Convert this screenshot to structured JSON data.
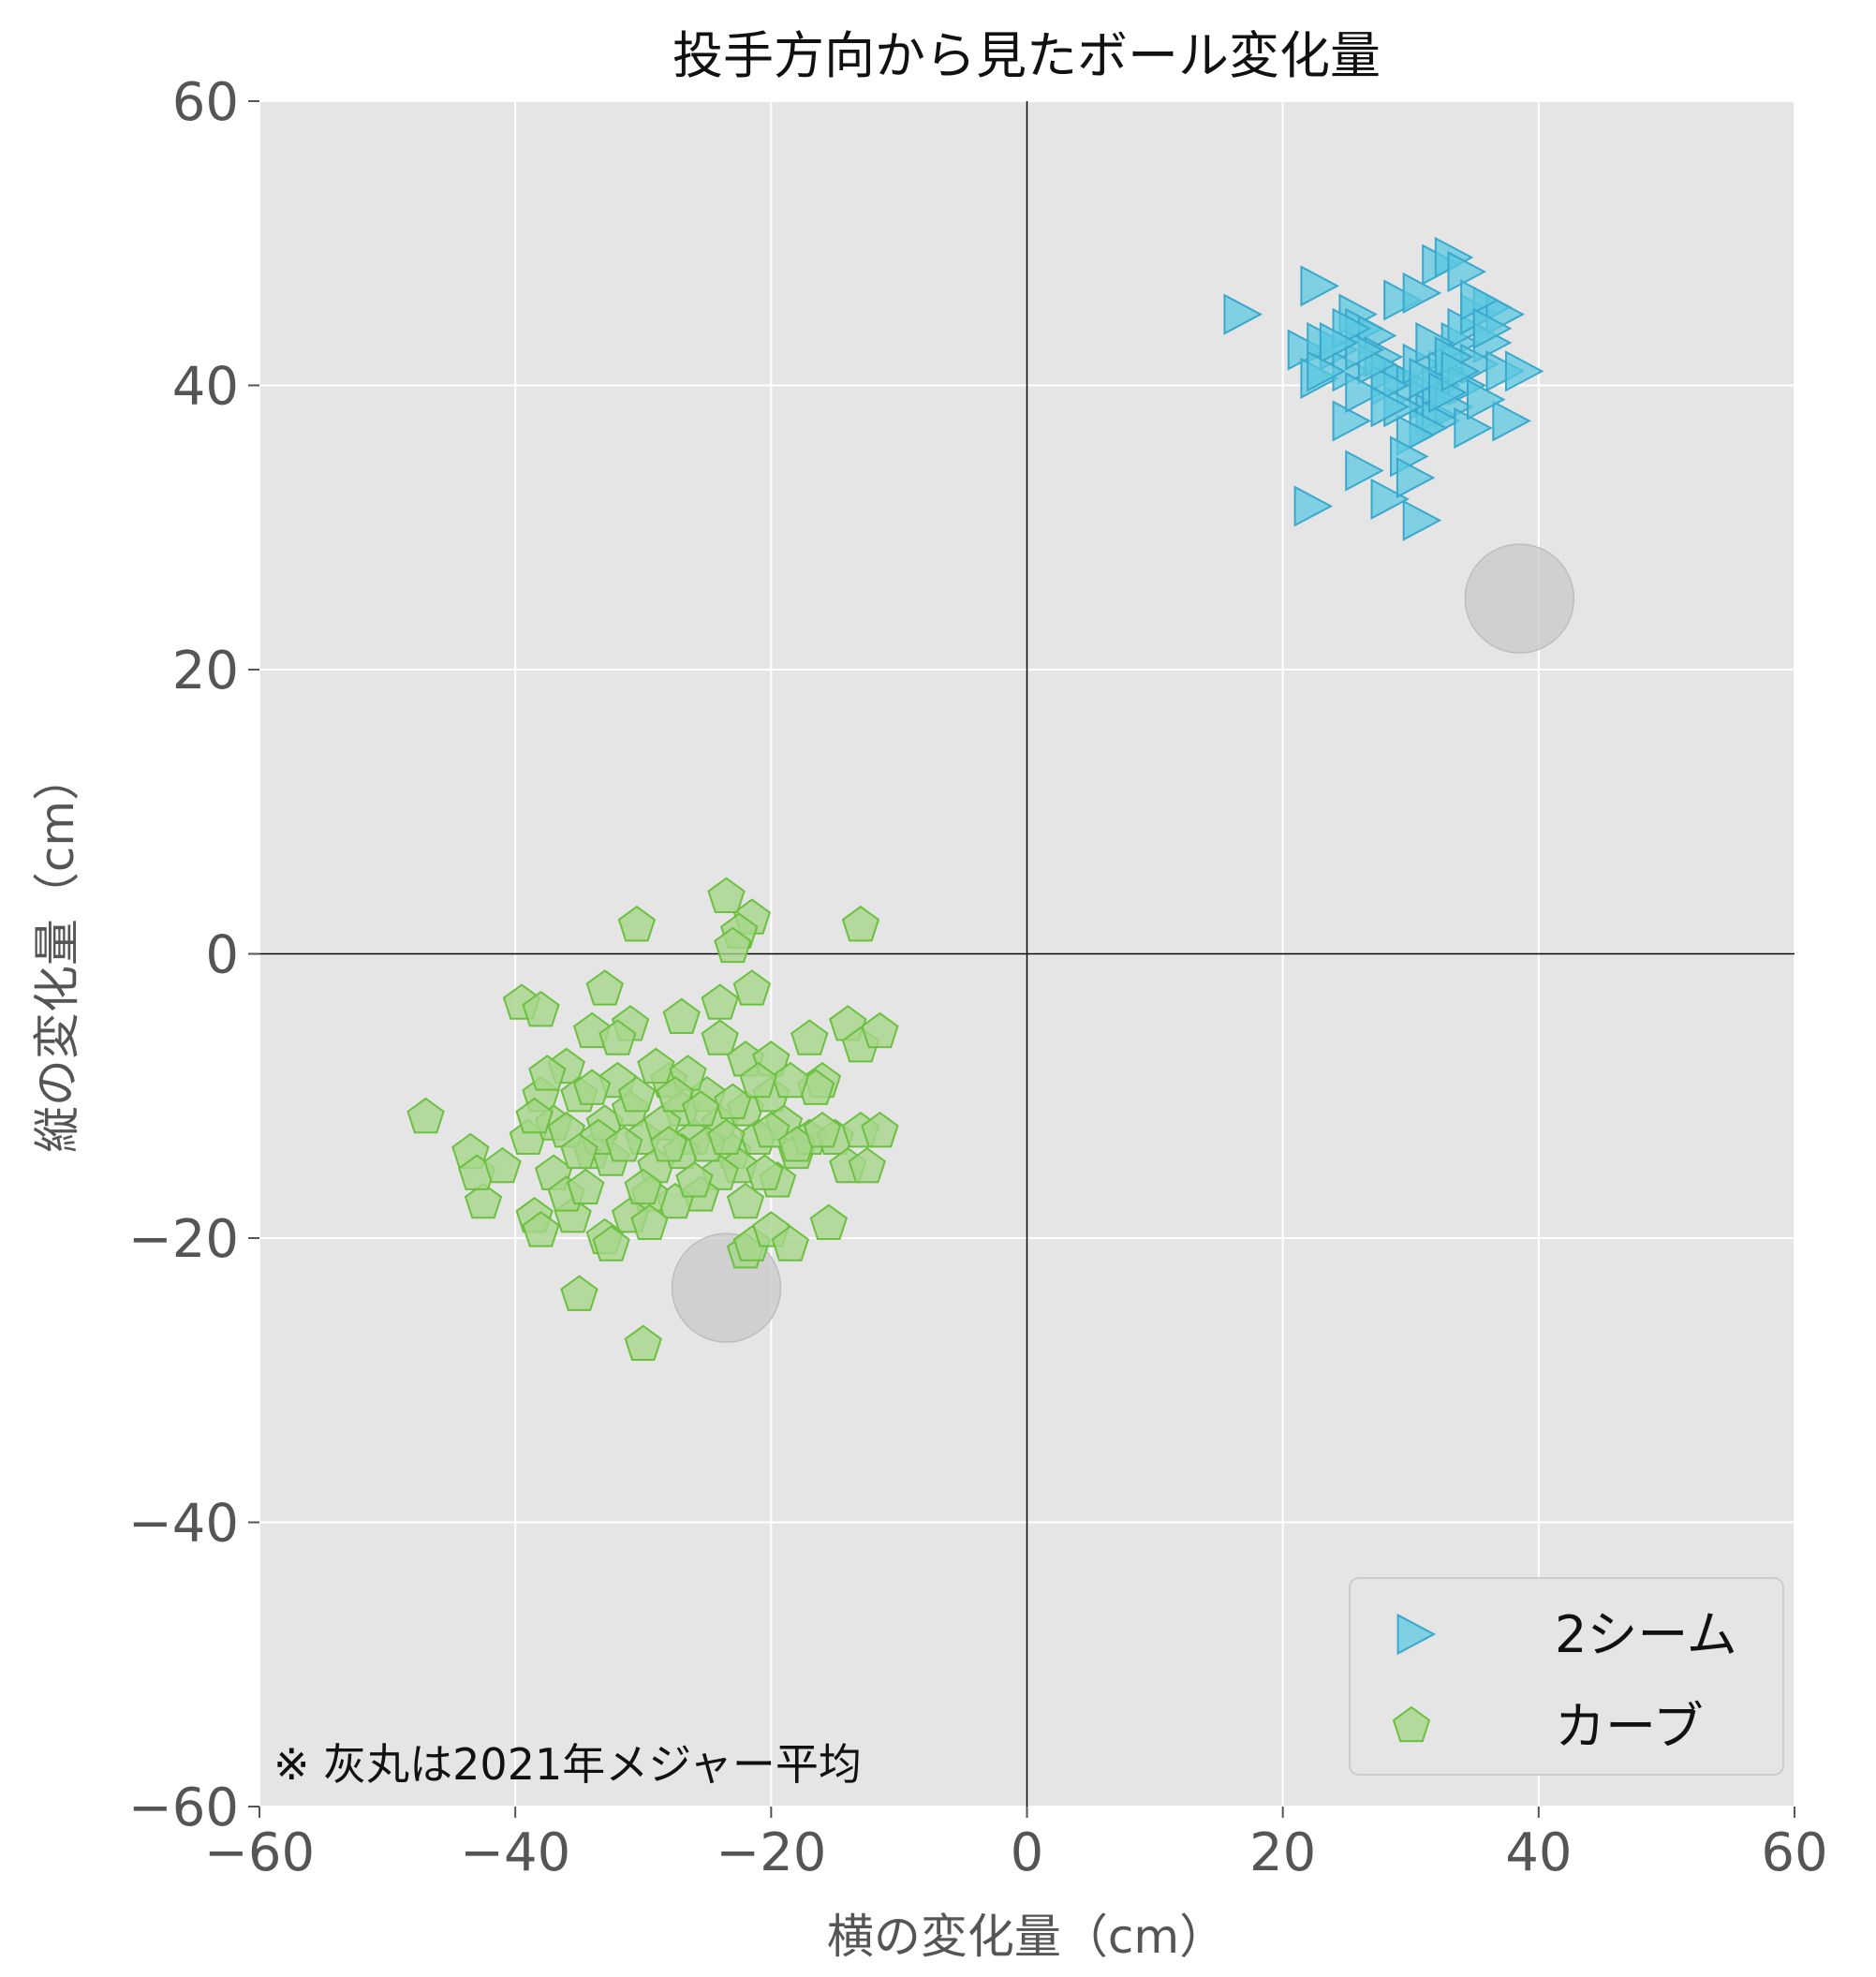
{
  "chart_data": {
    "type": "scatter",
    "title": "投手方向から見たボール変化量",
    "xlabel": "横の変化量（cm）",
    "ylabel": "縦の変化量（cm）",
    "xlim": [
      -60,
      60
    ],
    "ylim": [
      -60,
      60
    ],
    "xticks": [
      -60,
      -40,
      -20,
      0,
      20,
      40,
      60
    ],
    "yticks": [
      -60,
      -40,
      -20,
      0,
      20,
      40,
      60
    ],
    "xtick_labels": [
      "−60",
      "−40",
      "−20",
      "0",
      "20",
      "40",
      "60"
    ],
    "ytick_labels": [
      "−60",
      "−40",
      "−20",
      "0",
      "20",
      "40",
      "60"
    ],
    "grid": true,
    "legend_position": "bottom-right",
    "note": "※ 灰丸は2021年メジャー平均",
    "colors": {
      "background": "#e5e5e5",
      "grid": "#ffffff",
      "two_seam_fill": "#5bc8e0",
      "two_seam_edge": "#3aa8cc",
      "curve_fill": "#a6d68a",
      "curve_edge": "#6cc040",
      "average_fill": "#c8c8c8"
    },
    "series": [
      {
        "name": "2シーム",
        "marker": "triangle-right",
        "points": [
          [
            16.5,
            45
          ],
          [
            22.5,
            47
          ],
          [
            21.5,
            42.5
          ],
          [
            22.5,
            40.5
          ],
          [
            23,
            43
          ],
          [
            24,
            42.5
          ],
          [
            25,
            41
          ],
          [
            25.5,
            45
          ],
          [
            26,
            44
          ],
          [
            27,
            43.5
          ],
          [
            27.5,
            42
          ],
          [
            28,
            41
          ],
          [
            29,
            40.5
          ],
          [
            30,
            40
          ],
          [
            30.5,
            41.5
          ],
          [
            31,
            39
          ],
          [
            31.5,
            38
          ],
          [
            32,
            40
          ],
          [
            32.5,
            41
          ],
          [
            33,
            42
          ],
          [
            33.5,
            43
          ],
          [
            34,
            44
          ],
          [
            35,
            45
          ],
          [
            36,
            45.5
          ],
          [
            37,
            45
          ],
          [
            36,
            43
          ],
          [
            35,
            41.5
          ],
          [
            34,
            40
          ],
          [
            33,
            38.5
          ],
          [
            32,
            37.5
          ],
          [
            31,
            37
          ],
          [
            30,
            36.5
          ],
          [
            29,
            38.5
          ],
          [
            28,
            40
          ],
          [
            27,
            41.5
          ],
          [
            26,
            42.5
          ],
          [
            25,
            44
          ],
          [
            24,
            43
          ],
          [
            23,
            41
          ],
          [
            29,
            46
          ],
          [
            30.5,
            46.5
          ],
          [
            32,
            48.5
          ],
          [
            33,
            49
          ],
          [
            34,
            48
          ],
          [
            35,
            46
          ],
          [
            36,
            44
          ],
          [
            37,
            41
          ],
          [
            38.5,
            41
          ],
          [
            34.5,
            37
          ],
          [
            37.5,
            37.5
          ],
          [
            25,
            37.5
          ],
          [
            26,
            39.5
          ],
          [
            22,
            31.5
          ],
          [
            26,
            34
          ],
          [
            28,
            32
          ],
          [
            29.5,
            35
          ],
          [
            30,
            33.5
          ],
          [
            30.5,
            30.5
          ],
          [
            31.5,
            43
          ],
          [
            33,
            42
          ],
          [
            35.5,
            39
          ],
          [
            31,
            40.5
          ],
          [
            28,
            38.5
          ],
          [
            32.5,
            39.5
          ],
          [
            33.5,
            41
          ]
        ]
      },
      {
        "name": "カーブ",
        "marker": "pentagon",
        "points": [
          [
            -47,
            -11.5
          ],
          [
            -43.5,
            -14
          ],
          [
            -42.5,
            -17.5
          ],
          [
            -43,
            -15.5
          ],
          [
            -41,
            -15
          ],
          [
            -39.5,
            -3.5
          ],
          [
            -38,
            -4
          ],
          [
            -39,
            -13
          ],
          [
            -38,
            -10
          ],
          [
            -37,
            -12
          ],
          [
            -36,
            -8
          ],
          [
            -35,
            -10
          ],
          [
            -34,
            -14
          ],
          [
            -33,
            -12
          ],
          [
            -32,
            -9
          ],
          [
            -31,
            -11
          ],
          [
            -30,
            -13
          ],
          [
            -29,
            -15
          ],
          [
            -28,
            -9
          ],
          [
            -27,
            -11
          ],
          [
            -26,
            -13
          ],
          [
            -25,
            -10
          ],
          [
            -24,
            -12
          ],
          [
            -23,
            -14
          ],
          [
            -22,
            -11
          ],
          [
            -21,
            -13
          ],
          [
            -20,
            -10
          ],
          [
            -19,
            -12
          ],
          [
            -18,
            -14
          ],
          [
            -17,
            -13
          ],
          [
            -16,
            -9
          ],
          [
            -15,
            -13
          ],
          [
            -14,
            -15
          ],
          [
            -13,
            -12.5
          ],
          [
            -11.5,
            -12.5
          ],
          [
            -12.5,
            -15
          ],
          [
            -14,
            -5
          ],
          [
            -13,
            -6.5
          ],
          [
            -11.5,
            -5.5
          ],
          [
            -13,
            2
          ],
          [
            -21.5,
            2.5
          ],
          [
            -22.5,
            1.5
          ],
          [
            -23.5,
            4
          ],
          [
            -23,
            0.5
          ],
          [
            -30.5,
            2
          ],
          [
            -33,
            -2.5
          ],
          [
            -31,
            -5
          ],
          [
            -34,
            -5.5
          ],
          [
            -27,
            -4.5
          ],
          [
            -24,
            -3.5
          ],
          [
            -21.5,
            -2.5
          ],
          [
            -24,
            -6
          ],
          [
            -22,
            -7.5
          ],
          [
            -20,
            -7.5
          ],
          [
            -17,
            -6
          ],
          [
            -16.5,
            -9.5
          ],
          [
            -18.5,
            -9
          ],
          [
            -20,
            -12.5
          ],
          [
            -22.5,
            -15
          ],
          [
            -24,
            -15.5
          ],
          [
            -25.5,
            -17
          ],
          [
            -27.5,
            -17.5
          ],
          [
            -29.5,
            -17
          ],
          [
            -31,
            -18.5
          ],
          [
            -33,
            -20
          ],
          [
            -32.5,
            -20.5
          ],
          [
            -35,
            -24
          ],
          [
            -30,
            -27.5
          ],
          [
            -22,
            -21
          ],
          [
            -21.5,
            -20.5
          ],
          [
            -20,
            -19.5
          ],
          [
            -18.5,
            -20.5
          ],
          [
            -15.5,
            -19
          ],
          [
            -19.5,
            -16
          ],
          [
            -35.5,
            -18.5
          ],
          [
            -38.5,
            -18.5
          ],
          [
            -38,
            -19.5
          ],
          [
            -37,
            -15.5
          ],
          [
            -36,
            -17
          ],
          [
            -34.5,
            -16.5
          ],
          [
            -32.5,
            -14.5
          ],
          [
            -30,
            -16.5
          ],
          [
            -27,
            -14
          ],
          [
            -26,
            -16
          ],
          [
            -36,
            -12.5
          ],
          [
            -34,
            -9.5
          ],
          [
            -32,
            -6
          ],
          [
            -29,
            -8
          ],
          [
            -26.5,
            -8.5
          ],
          [
            -25,
            -13.5
          ],
          [
            -23,
            -10.5
          ],
          [
            -21,
            -9
          ],
          [
            -28.5,
            -12
          ],
          [
            -30.5,
            -10
          ],
          [
            -33.5,
            -13
          ],
          [
            -37.5,
            -8.5
          ],
          [
            -38.5,
            -11.5
          ],
          [
            -35,
            -14
          ],
          [
            -29.5,
            -19
          ],
          [
            -27.5,
            -10
          ],
          [
            -25.5,
            -11
          ],
          [
            -23.5,
            -13
          ],
          [
            -22,
            -17.5
          ],
          [
            -20.5,
            -15.5
          ],
          [
            -18,
            -13.5
          ],
          [
            -16,
            -12.5
          ],
          [
            -31.5,
            -13.5
          ],
          [
            -28,
            -13.5
          ]
        ]
      }
    ],
    "averages": [
      {
        "x": 38.5,
        "y": 25
      },
      {
        "x": -23.5,
        "y": -23.5
      }
    ]
  }
}
